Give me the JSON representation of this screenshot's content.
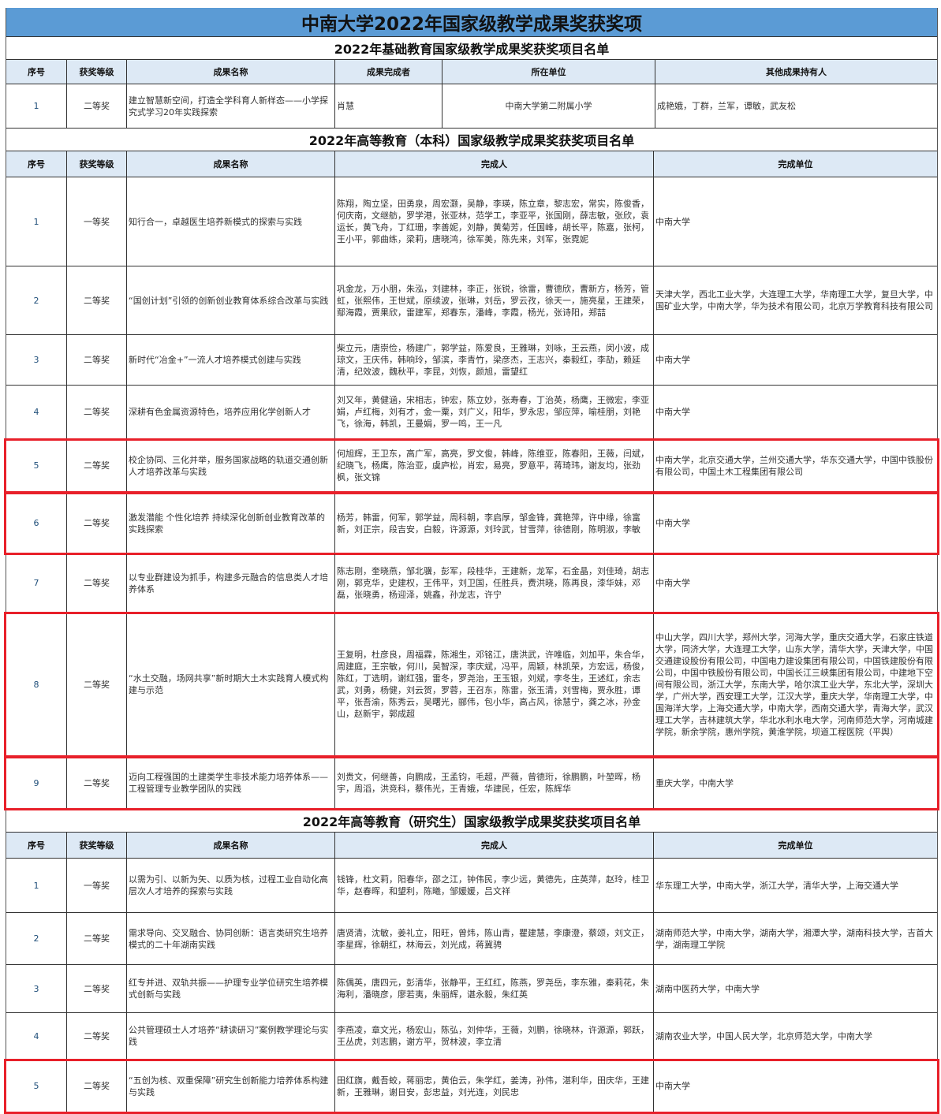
{
  "title": "中南大学2022年国家级教学成果奖获奖项",
  "colors": {
    "title_bg": "#5b9bd5",
    "header_bg": "#dde9f5",
    "highlight": "#e8202a"
  },
  "sections": [
    {
      "title": "2022年基础教育国家级教学成果奖获奖项目名单",
      "headers": [
        "序号",
        "获奖等级",
        "成果名称",
        "成果完成者",
        "所在单位",
        "其他成果持有人"
      ],
      "rows": [
        {
          "no": "1",
          "level": "二等奖",
          "name": "建立智慧新空间，打造全学科育人新样态——小学探究式学习20年实践探索",
          "completer": "肖慧",
          "unit": "中南大学第二附属小学",
          "others": "成艳娥，丁群，兰军，谭敏，武友松",
          "highlighted": false
        }
      ]
    },
    {
      "title": "2022年高等教育（本科）国家级教学成果奖获奖项目名单",
      "headers": [
        "序号",
        "获奖等级",
        "成果名称",
        "完成人",
        "完成单位"
      ],
      "rows": [
        {
          "no": "1",
          "level": "一等奖",
          "name": "知行合一，卓越医生培养新模式的探索与实践",
          "people": "陈翔，陶立坚，田勇泉，周宏灏，吴静，李瑛，陈立章，黎志宏，常实，陈俊香，何庆南，文继舫，罗学港，张亚林，范学工，李亚平，张国刚，薛志敏，张欣，袁运长，黄飞舟，丁红珊，李善妮，刘静，黄菊芳，任国峰，胡长平，陈嘉，张柯，王小平，郭曲练，梁莉，唐晓鸿，徐军美，陈先来，刘军，张霓妮",
          "units": "中南大学",
          "highlighted": false
        },
        {
          "no": "2",
          "level": "二等奖",
          "name": "“国创计划”引领的创新创业教育体系综合改革与实践",
          "people": "巩金龙，万小朋，朱泓，刘建林，李正，张锐，徐雷，曹德欣，曹新方，杨芳，管虹，张熙伟，王世斌，原续波，张琳，刘岳，罗云孜，徐天一，施亮星，王建荣，鄢海霞，贾果欣，雷建军，郑春东，潘峰，李霞，杨光，张诗阳，郑喆",
          "units": "天津大学，西北工业大学，大连理工大学，华南理工大学，复旦大学，中国矿业大学，中南大学，华为技术有限公司，北京万学教育科技有限公司",
          "highlighted": false
        },
        {
          "no": "3",
          "level": "二等奖",
          "name": "新时代“冶金+”一流人才培养模式创建与实践",
          "people": "柴立元，唐崇俭，杨建广，郭学益，陈爱良，王雅琳，刘咏，王云燕，闵小波，成琼文，王庆伟，韩响玲，邹滨，李青竹，梁彦杰，王志兴，秦毅红，李劼，赖延清，纪效波，魏秋平，李昆，刘恢，颜旭，雷望红",
          "units": "中南大学",
          "highlighted": false
        },
        {
          "no": "4",
          "level": "二等奖",
          "name": "深耕有色金属资源特色，培养应用化学创新人才",
          "people": "刘又年，黄健涵，宋相志，钟宏，陈立妙，张寿春，丁治英，杨鹰，王微宏，李亚娟，卢红梅，刘有才，金一粟，刘广义，阳华，罗永忠，邹应萍，喻桂朋，刘艳飞，徐海，韩凯，王曼娟，罗一鸣，王一凡",
          "units": "中南大学",
          "highlighted": false
        },
        {
          "no": "5",
          "level": "二等奖",
          "name": "校企协同、三化并举，服务国家战略的轨道交通创新人才培养改革与实践",
          "people": "何旭辉，王卫东，高广军，高亮，罗文俊，韩峰，陈维亚，陈春阳，王薇，闫斌，纪晓飞，杨鹰，陈治亚，虞庐松，肖宏，易亮，罗意平，蒋琦玮，谢友均，张劲枫，张文锦",
          "units": "中南大学，北京交通大学，兰州交通大学，华东交通大学，中国中铁股份有限公司，中国土木工程集团有限公司",
          "highlighted": true
        },
        {
          "no": "6",
          "level": "二等奖",
          "name": "激发潜能 个性化培养 持续深化创新创业教育改革的实践探索",
          "people": "杨芳，韩雷，何军，郭学益，周科朝，李启厚，邹金锋，龚艳萍，许中缘，徐富新，刘正宗，段吉安，白毅，许源源，刘玲武，甘雪萍，徐德刚，陈明淑，李敏",
          "units": "中南大学",
          "highlighted": true
        },
        {
          "no": "7",
          "level": "二等奖",
          "name": "以专业群建设为抓手，构建多元融合的信息类人才培养体系",
          "people": "陈志刚，奎晓燕，邹北骥，彭军，段桂华，王建新，龙军，石金晶，刘佳琦，胡志刚，郭克华，史建权，王伟平，刘卫国，任胜兵，费洪晓，陈再良，漆华妹，邓磊，张晓勇，杨迎泽，姚鑫，孙龙志，许宁",
          "units": "中南大学",
          "highlighted": false
        },
        {
          "no": "8",
          "level": "二等奖",
          "name": "“水土交融，场网共享”新时期大土木实践育人模式构建与示范",
          "people": "王复明，杜彦良，周福霖，陈湘生，邓铭江，唐洪武，许唯临，刘加平，朱合华，周建庭，王宗敏，何川，吴智深，李庆斌，冯平，周颖，林凯荣，方宏远，杨俊，陈红，丁选明，谢红强，雷冬，罗尧治，王玉银，刘斌，李冬生，王述红，余志武，刘勇，杨健，刘云贺，罗蓉，王召东，陈雷，张玉清，刘雪梅，贾永胜，谭平，张吾渝，陈秀云，吴曙光，郦伟，包小华，高占风，徐慧宁，龚之冰，孙金山，赵新宇，郭成超",
          "units": "中山大学，四川大学，郑州大学，河海大学，重庆交通大学，石家庄铁道大学，同济大学，大连理工大学，山东大学，清华大学，天津大学，中国交通建设股份有限公司，中国电力建设集团有限公司，中国铁建股份有限公司，中国中铁股份有限公司，中国长江三峡集团有限公司，中建地下空间有限公司，浙江大学，东南大学，哈尔滨工业大学，东北大学，深圳大学，广州大学，西安理工大学，江汉大学，重庆大学，华南理工大学，中国海洋大学，上海交通大学，中南大学，西南交通大学，青海大学，武汉理工大学，吉林建筑大学，华北水利水电大学，河南师范大学，河南城建学院，新余学院，惠州学院，黄淮学院，坝道工程医院（平舆）",
          "highlighted": true
        },
        {
          "no": "9",
          "level": "二等奖",
          "name": "迈向工程强国的土建类学生非技术能力培养体系——工程管理专业教学团队的实践",
          "people": "刘贵文，何继善，向鹏成，王孟钧，毛超，严薇，曾德珩，徐鹏鹏，叶堃晖，杨宇，周滔，洪竞科，蔡伟光，王青娥，华建民，任宏，陈辉华",
          "units": "重庆大学，中南大学",
          "highlighted": true
        }
      ]
    },
    {
      "title": "2022年高等教育（研究生）国家级教学成果奖获奖项目名单",
      "headers": [
        "序号",
        "获奖等级",
        "成果名称",
        "完成人",
        "完成单位"
      ],
      "rows": [
        {
          "no": "1",
          "level": "一等奖",
          "name": "以需为引、以新为矢、以质为核，过程工业自动化高层次人才培养的探索与实践",
          "people": "钱锋，杜文莉，阳春华，邵之江，钟伟民，李少远，黄德先，庄英萍，赵玲，桂卫华，赵春晖，和望利，陈曦，邹媛媛，吕文祥",
          "units": "华东理工大学，中南大学，浙江大学，清华大学，上海交通大学",
          "highlighted": false
        },
        {
          "no": "2",
          "level": "二等奖",
          "name": "需求导向、交叉融合、协同创新：语言类研究生培养模式的二十年湖南实践",
          "people": "唐贤清，沈敏，姜礼立，阳旺，曾炜，陈山青，瞿建慧，李康澄，蔡颂，刘文正，李星辉，徐朝红，林海云，刘光成，蒋冀骋",
          "units": "湖南师范大学，中南大学，湖南大学，湘潭大学，湖南科技大学，吉首大学，湖南理工学院",
          "highlighted": false
        },
        {
          "no": "3",
          "level": "二等奖",
          "name": "红专并进、双轨共振——护理专业学位研究生培养模式创新与实践",
          "people": "陈偶英，唐四元，彭清华，张静平，王红红，陈燕，罗尧岳，李东雅，秦莉花，朱海利，潘晓彦，廖若夷，朱丽辉，谌永毅，朱红英",
          "units": "湖南中医药大学，中南大学",
          "highlighted": false
        },
        {
          "no": "4",
          "level": "二等奖",
          "name": "公共管理硕士人才培养“耕读研习”案例教学理论与实践",
          "people": "李燕凌，章文光，杨宏山，陈弘，刘仲华，王薇，刘鹏，徐晓林，许源源，郭跃，王丛虎，刘志鹏，谢方平，贺林波，李立清",
          "units": "湖南农业大学，中国人民大学，北京师范大学，中南大学",
          "highlighted": false
        },
        {
          "no": "5",
          "level": "二等奖",
          "name": "“五创为核、双重保障”研究生创新能力培养体系构建与实践",
          "people": "田红旗，戴吾蛟，蒋丽忠，黄伯云，朱学红，姜涛，孙伟，湛利华，田庆华，王建新，王雅琳，谢日安，彭忠益，刘光连，刘民忠",
          "units": "中南大学",
          "highlighted": true
        }
      ]
    }
  ]
}
